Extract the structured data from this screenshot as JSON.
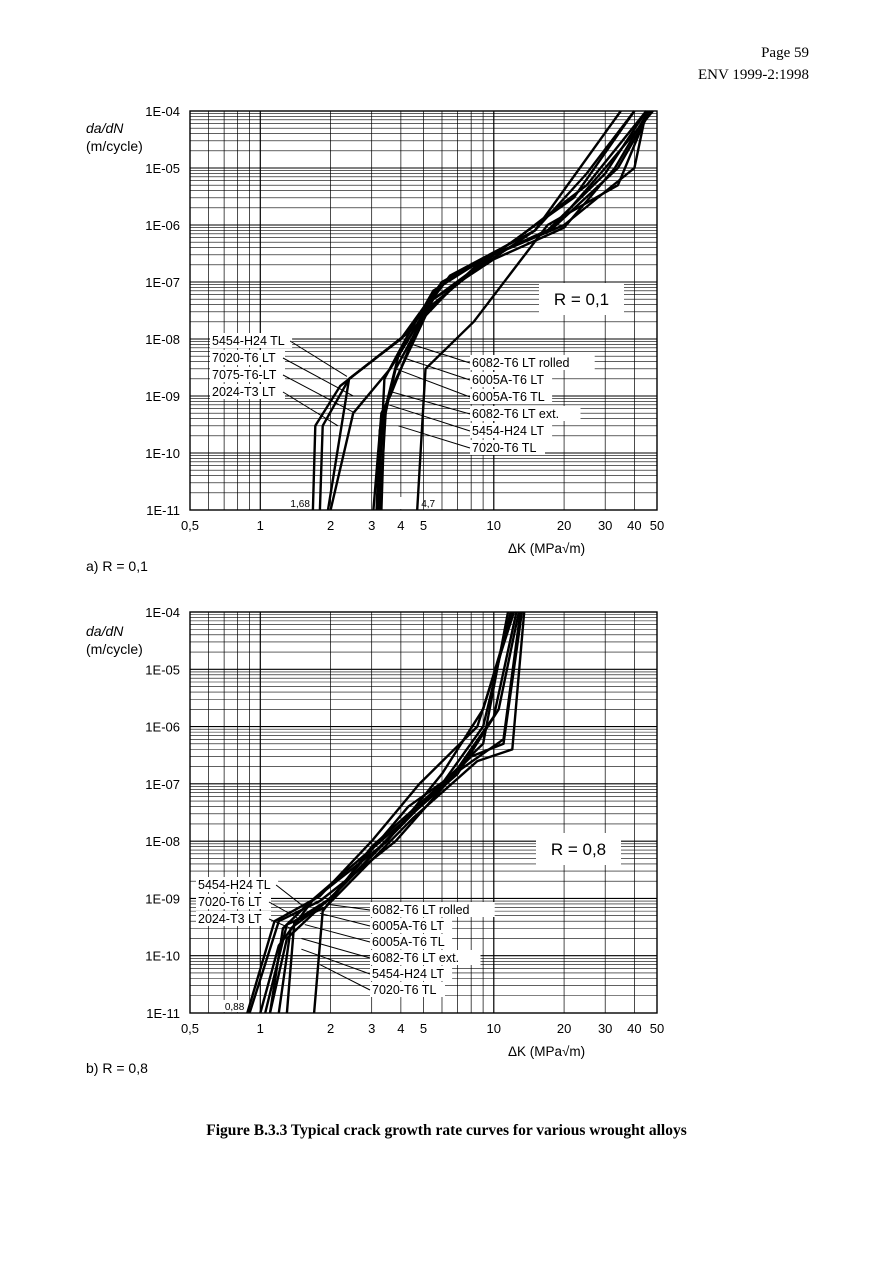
{
  "header": {
    "page": "Page 59",
    "doc": "ENV 1999-2:1998"
  },
  "caption": "Figure B.3.3 Typical crack growth rate curves for various wrought alloys",
  "chart_data": [
    {
      "type": "line",
      "panel_label": "a) R = 0,1",
      "r_box": "R = 0,1",
      "ylabel": "da/dN\n(m/cycle)",
      "xlabel": "ΔK (MPa√m)",
      "xscale": "log",
      "yscale": "log",
      "xlim": [
        0.5,
        50
      ],
      "ylim": [
        1e-11,
        0.0001
      ],
      "xticks": [
        {
          "v": 0.5,
          "t": "0,5"
        },
        {
          "v": 1,
          "t": "1"
        },
        {
          "v": 2,
          "t": "2"
        },
        {
          "v": 3,
          "t": "3"
        },
        {
          "v": 4,
          "t": "4"
        },
        {
          "v": 5,
          "t": "5"
        },
        {
          "v": 10,
          "t": "10"
        },
        {
          "v": 20,
          "t": "20"
        },
        {
          "v": 30,
          "t": "30"
        },
        {
          "v": 40,
          "t": "40"
        },
        {
          "v": 50,
          "t": "50"
        }
      ],
      "yticks": [
        {
          "v": 0.0001,
          "t": "1E-04"
        },
        {
          "v": 1e-05,
          "t": "1E-05"
        },
        {
          "v": 1e-06,
          "t": "1E-06"
        },
        {
          "v": 1e-07,
          "t": "1E-07"
        },
        {
          "v": 1e-08,
          "t": "1E-08"
        },
        {
          "v": 1e-09,
          "t": "1E-09"
        },
        {
          "v": 1e-10,
          "t": "1E-10"
        },
        {
          "v": 1e-11,
          "t": "1E-11"
        }
      ],
      "annotations": [
        {
          "text": "1,68",
          "x": 1.68,
          "y": 1e-11
        },
        {
          "text": "4,7",
          "x": 4.7,
          "y": 1e-11
        }
      ],
      "series": [
        {
          "name": "5454-H24 TL",
          "side": "left",
          "anchor": [
            2.35,
            2.2e-09
          ],
          "x": [
            1.8,
            1.85,
            2.4,
            4.2,
            6.5,
            15,
            25,
            40
          ],
          "y": [
            1e-11,
            3e-10,
            2e-09,
            1.2e-08,
            1.3e-07,
            8e-07,
            8e-06,
            0.0001
          ]
        },
        {
          "name": "7020-T6 LT",
          "side": "left",
          "anchor": [
            2.5,
            1e-09
          ],
          "x": [
            1.95,
            2.4,
            4,
            6,
            12,
            25,
            45
          ],
          "y": [
            1e-11,
            2e-09,
            1e-08,
            1e-07,
            5e-07,
            5e-06,
            0.0001
          ]
        },
        {
          "name": "7075-T6-LT",
          "side": "left",
          "anchor": [
            2.55,
            5e-10
          ],
          "x": [
            2,
            2.5,
            3.6,
            5.5,
            10,
            22,
            40
          ],
          "y": [
            1e-11,
            5e-10,
            3e-09,
            5e-08,
            3e-07,
            3e-06,
            0.0001
          ]
        },
        {
          "name": "2024-T3 LT",
          "side": "left",
          "anchor": [
            2.15,
            3e-10
          ],
          "x": [
            1.68,
            1.72,
            2.2,
            4.5,
            7,
            15,
            35
          ],
          "y": [
            1e-11,
            3e-10,
            1.5e-09,
            1.5e-08,
            1e-07,
            8e-07,
            0.0001
          ]
        },
        {
          "name": "6082-T6 LT rolled",
          "side": "right",
          "anchor": [
            4.1,
            9e-09
          ],
          "x": [
            3.2,
            3.4,
            4.2,
            5.5,
            9,
            17,
            30,
            45
          ],
          "y": [
            1e-11,
            2e-09,
            1e-08,
            7e-08,
            2.5e-07,
            8e-07,
            8e-06,
            0.0001
          ]
        },
        {
          "name": "6005A-T6 LT",
          "side": "right",
          "anchor": [
            3.9,
            5e-09
          ],
          "x": [
            3.15,
            3.25,
            3.9,
            6,
            10,
            18,
            30,
            48
          ],
          "y": [
            1e-11,
            2.5e-10,
            5e-09,
            1e-07,
            3e-07,
            9e-07,
            1e-05,
            0.0001
          ]
        },
        {
          "name": "6005A-T6 TL",
          "side": "right",
          "anchor": [
            3.8,
            3e-09
          ],
          "x": [
            3.25,
            3.45,
            3.8,
            5.5,
            10,
            20,
            33,
            46
          ],
          "y": [
            1e-11,
            6e-10,
            3e-09,
            5e-08,
            2.5e-07,
            9e-07,
            1e-05,
            0.0001
          ]
        },
        {
          "name": "6082-T6 LT ext.",
          "side": "right",
          "anchor": [
            3.6,
            1.2e-09
          ],
          "x": [
            3.3,
            3.4,
            3.6,
            5.2,
            9,
            18,
            34,
            47
          ],
          "y": [
            1e-11,
            4e-10,
            1.2e-09,
            3e-08,
            2.5e-07,
            9e-07,
            1e-05,
            0.0001
          ]
        },
        {
          "name": "5454-H24 LT",
          "side": "right",
          "anchor": [
            3.55,
            7e-10
          ],
          "x": [
            3.05,
            3.3,
            3.6,
            5,
            10,
            20,
            40,
            45
          ],
          "y": [
            1e-11,
            5e-10,
            1e-09,
            3e-08,
            3e-07,
            1e-06,
            1e-05,
            0.0001
          ]
        },
        {
          "name": "7020-T6 TL",
          "side": "right",
          "anchor": [
            3.9,
            3e-10
          ],
          "x": [
            4.7,
            5.1,
            8.2,
            17,
            34,
            46
          ],
          "y": [
            1e-11,
            3e-09,
            2e-08,
            1e-06,
            5e-06,
            0.0001
          ]
        }
      ]
    },
    {
      "type": "line",
      "panel_label": "b) R = 0,8",
      "r_box": "R = 0,8",
      "ylabel": "da/dN\n(m/cycle)",
      "xlabel": "ΔK (MPa√m)",
      "xscale": "log",
      "yscale": "log",
      "xlim": [
        0.5,
        50
      ],
      "ylim": [
        1e-11,
        0.0001
      ],
      "xticks": [
        {
          "v": 0.5,
          "t": "0,5"
        },
        {
          "v": 1,
          "t": "1"
        },
        {
          "v": 2,
          "t": "2"
        },
        {
          "v": 3,
          "t": "3"
        },
        {
          "v": 4,
          "t": "4"
        },
        {
          "v": 5,
          "t": "5"
        },
        {
          "v": 10,
          "t": "10"
        },
        {
          "v": 20,
          "t": "20"
        },
        {
          "v": 30,
          "t": "30"
        },
        {
          "v": 40,
          "t": "40"
        },
        {
          "v": 50,
          "t": "50"
        }
      ],
      "yticks": [
        {
          "v": 0.0001,
          "t": "1E-04"
        },
        {
          "v": 1e-05,
          "t": "1E-05"
        },
        {
          "v": 1e-06,
          "t": "1E-06"
        },
        {
          "v": 1e-07,
          "t": "1E-07"
        },
        {
          "v": 1e-08,
          "t": "1E-08"
        },
        {
          "v": 1e-09,
          "t": "1E-09"
        },
        {
          "v": 1e-10,
          "t": "1E-10"
        },
        {
          "v": 1e-11,
          "t": "1E-11"
        }
      ],
      "annotations": [
        {
          "text": "0,88",
          "x": 0.88,
          "y": 1e-11
        }
      ],
      "series": [
        {
          "name": "5454-H24 TL",
          "side": "left",
          "anchor": [
            1.55,
            7e-10
          ],
          "x": [
            1.1,
            1.25,
            1.6,
            3.5,
            6,
            9,
            12
          ],
          "y": [
            1e-11,
            3e-10,
            8e-10,
            1e-08,
            1.5e-07,
            2e-06,
            0.0001
          ]
        },
        {
          "name": "7020-T6 LT",
          "side": "left",
          "anchor": [
            1.45,
            4.5e-10
          ],
          "x": [
            0.9,
            1.2,
            1.8,
            3.8,
            6.5,
            10,
            12.5
          ],
          "y": [
            1e-11,
            4e-10,
            9e-10,
            1e-08,
            1.2e-07,
            1.5e-06,
            0.0001
          ]
        },
        {
          "name": "2024-T3 LT",
          "side": "left",
          "anchor": [
            1.35,
            3e-10
          ],
          "x": [
            0.88,
            1.15,
            1.8,
            3,
            4.8,
            8.5,
            12.2
          ],
          "y": [
            1e-11,
            4e-10,
            1.1e-09,
            1e-08,
            1e-07,
            1e-06,
            0.0001
          ]
        },
        {
          "name": "6082-T6 LT rolled",
          "side": "right",
          "anchor": [
            1.9,
            8e-10
          ],
          "x": [
            1.3,
            1.4,
            2,
            4.5,
            8,
            11,
            13.2
          ],
          "y": [
            1e-11,
            4e-10,
            1e-09,
            3e-08,
            3e-07,
            5e-07,
            0.0001
          ]
        },
        {
          "name": "6005A-T6 LT",
          "side": "right",
          "anchor": [
            1.8,
            5.5e-10
          ],
          "x": [
            1.05,
            1.3,
            1.9,
            4.5,
            8.5,
            12,
            13.5
          ],
          "y": [
            1e-11,
            3.5e-10,
            7e-10,
            2.5e-08,
            2.5e-07,
            4e-07,
            0.0001
          ]
        },
        {
          "name": "6005A-T6 TL",
          "side": "right",
          "anchor": [
            1.55,
            3.5e-10
          ],
          "x": [
            1.2,
            1.35,
            2,
            4.3,
            7.5,
            11,
            13
          ],
          "y": [
            1e-11,
            3e-10,
            1e-09,
            4e-08,
            2e-07,
            6e-07,
            0.0001
          ]
        },
        {
          "name": "6082-T6 LT ext.",
          "side": "right",
          "anchor": [
            1.5,
            2e-10
          ],
          "x": [
            1.1,
            1.3,
            2.2,
            5,
            9,
            11.5
          ],
          "y": [
            1e-11,
            2e-10,
            1.5e-09,
            5e-08,
            5e-07,
            0.0001
          ]
        },
        {
          "name": "5454-H24 LT",
          "side": "right",
          "anchor": [
            1.5,
            1.3e-10
          ],
          "x": [
            1.0,
            1.2,
            1.7,
            4,
            7,
            10.5,
            12.8
          ],
          "y": [
            1e-11,
            1.5e-10,
            1e-09,
            2e-08,
            1.5e-07,
            2e-06,
            0.0001
          ]
        },
        {
          "name": "7020-T6 TL",
          "side": "right",
          "anchor": [
            1.8,
            7e-11
          ],
          "x": [
            1.7,
            1.85,
            3,
            6,
            9,
            11.8
          ],
          "y": [
            1e-11,
            6e-10,
            8e-09,
            1e-07,
            1e-06,
            0.0001
          ]
        }
      ]
    }
  ]
}
